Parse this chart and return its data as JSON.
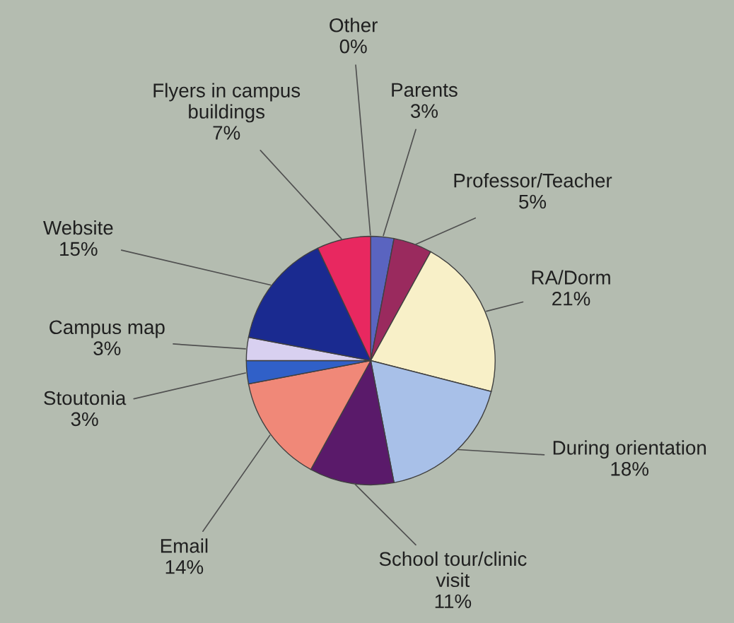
{
  "chart_data": {
    "type": "pie",
    "categories": [
      "Other",
      "Parents",
      "Professor/Teacher",
      "RA/Dorm",
      "During orientation",
      "School tour/clinic visit",
      "Email",
      "Stoutonia",
      "Campus map",
      "Website",
      "Flyers in campus buildings"
    ],
    "values": [
      0,
      3,
      5,
      21,
      18,
      11,
      14,
      3,
      3,
      15,
      7
    ],
    "value_labels": [
      "0%",
      "3%",
      "5%",
      "21%",
      "18%",
      "11%",
      "14%",
      "3%",
      "3%",
      "15%",
      "7%"
    ],
    "colors": [
      "#c8c8d8",
      "#5a64c0",
      "#9a2a5e",
      "#f8f0c8",
      "#a8c0e8",
      "#5a1a6a",
      "#f08878",
      "#3060c8",
      "#d8d0f0",
      "#1a2a90",
      "#e82860"
    ],
    "legend": false
  }
}
